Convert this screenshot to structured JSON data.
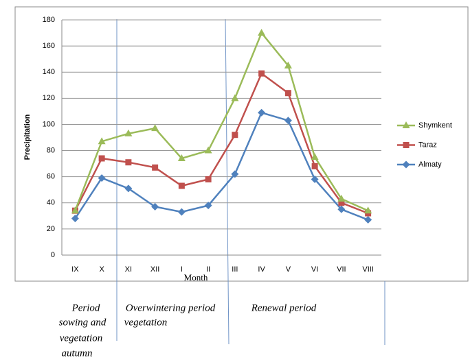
{
  "chart_data": {
    "type": "line",
    "y_label": "Precipitation",
    "x_label": "Month",
    "categories": [
      "IX",
      "X",
      "XI",
      "XII",
      "I",
      "II",
      "III",
      "IV",
      "V",
      "VI",
      "VII",
      "VIII"
    ],
    "series": [
      {
        "name": "Shymkent",
        "color": "#9bbb59",
        "marker": "triangle",
        "values": [
          34,
          87,
          93,
          97,
          74,
          80,
          120,
          170,
          145,
          75,
          43,
          34
        ]
      },
      {
        "name": "Taraz",
        "color": "#c0504d",
        "marker": "square",
        "values": [
          34,
          74,
          71,
          67,
          53,
          58,
          92,
          139,
          124,
          68,
          40,
          32
        ]
      },
      {
        "name": "Almaty",
        "color": "#4f81bd",
        "marker": "diamond",
        "values": [
          28,
          59,
          51,
          37,
          33,
          38,
          62,
          109,
          103,
          58,
          35,
          27
        ]
      }
    ],
    "ylim": [
      0,
      180
    ],
    "yticks": [
      0,
      20,
      40,
      60,
      80,
      100,
      120,
      140,
      160,
      180
    ],
    "grid": true,
    "legend": "right",
    "annotations": [
      [
        "Period",
        "sowing and",
        "vegetation",
        "autumn"
      ],
      [
        "Overwintering period",
        "vegetation"
      ],
      [
        "Renewal period"
      ]
    ]
  }
}
